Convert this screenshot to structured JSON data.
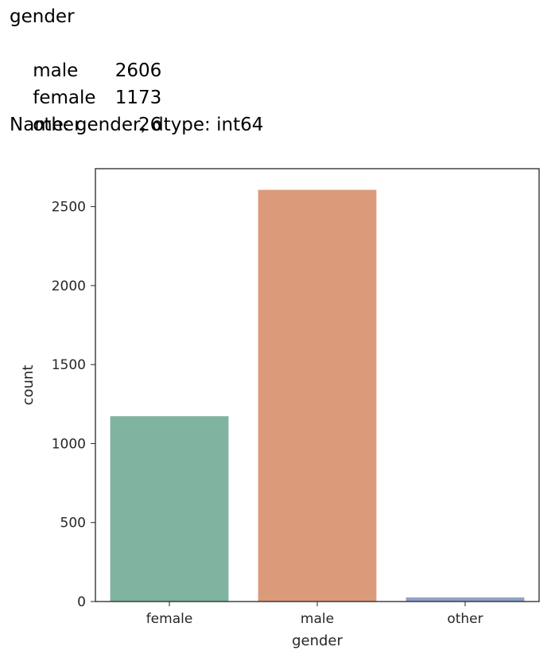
{
  "output": {
    "header": "gender",
    "rows": [
      {
        "label": "male",
        "value": "2606"
      },
      {
        "label": "female",
        "value": "1173"
      },
      {
        "label": "other",
        "value": "26"
      }
    ],
    "footer": "Name: gender, dtype: int64"
  },
  "chart_data": {
    "type": "bar",
    "categories": [
      "female",
      "male",
      "other"
    ],
    "values": [
      1173,
      2606,
      26
    ],
    "colors": [
      "#80b3a0",
      "#db9a79",
      "#8fa0c8"
    ],
    "title": "",
    "xlabel": "gender",
    "ylabel": "count",
    "ylim": [
      0,
      2740
    ],
    "yticks": [
      0,
      500,
      1000,
      1500,
      2000,
      2500
    ],
    "yticklabels": [
      "0",
      "500",
      "1000",
      "1500",
      "2000",
      "2500"
    ],
    "grid": false
  }
}
